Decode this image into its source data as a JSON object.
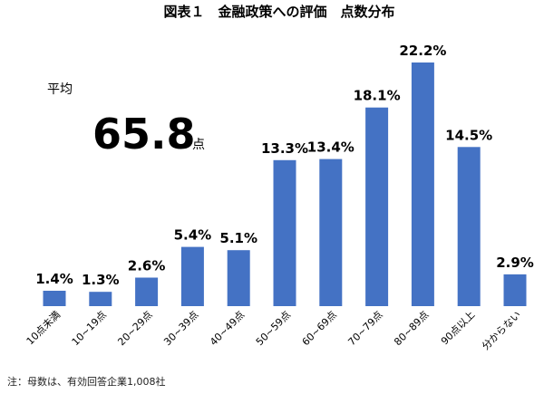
{
  "chart_data": {
    "type": "bar",
    "title": "図表１　金融政策への評価　点数分布",
    "xlabel": "",
    "ylabel": "",
    "ylim": [
      0,
      25
    ],
    "grid": false,
    "legend": "none",
    "categories": [
      "10点未満",
      "10~19点",
      "20~29点",
      "30~39点",
      "40~49点",
      "50~59点",
      "60~69点",
      "70~79点",
      "80~89点",
      "90点以上",
      "分からない"
    ],
    "values": [
      1.4,
      1.3,
      2.6,
      5.4,
      5.1,
      13.3,
      13.4,
      18.1,
      22.2,
      14.5,
      2.9
    ],
    "value_labels": [
      "1.4%",
      "1.3%",
      "2.6%",
      "5.4%",
      "5.1%",
      "13.3%",
      "13.4%",
      "18.1%",
      "22.2%",
      "14.5%",
      "2.9%"
    ],
    "bar_color": "#4472C4"
  },
  "average": {
    "label": "平均",
    "value": "65.8",
    "unit": "点"
  },
  "note": "注：母数は、有効回答企業1,008社"
}
